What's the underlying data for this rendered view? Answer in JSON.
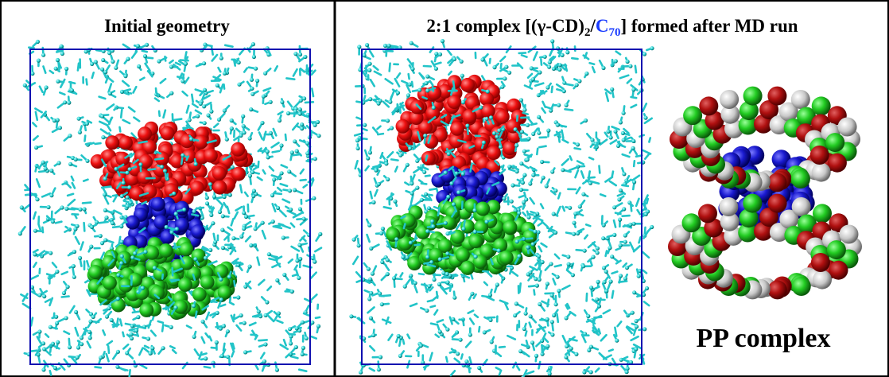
{
  "panels": [
    {
      "title": "Initial geometry"
    },
    {
      "title": [
        "2:1 complex [(γ-CD)",
        "2",
        "/",
        "C",
        "70",
        "] formed after MD run"
      ],
      "label": "PP complex"
    }
  ]
}
